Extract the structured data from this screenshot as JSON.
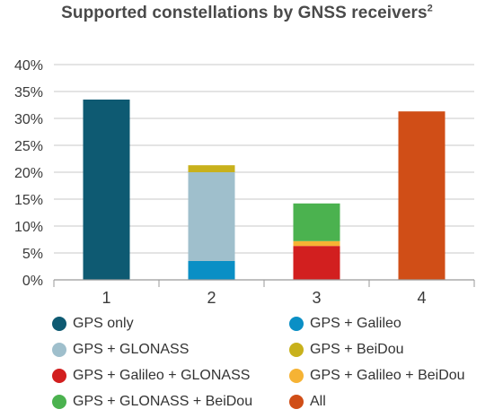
{
  "title": "Supported constellations by GNSS receivers",
  "title_footnote": "2",
  "chart_data": {
    "type": "bar",
    "stacked": true,
    "categories": [
      "1",
      "2",
      "3",
      "4"
    ],
    "ylim": [
      0,
      40
    ],
    "y_ticks": [
      "0%",
      "5%",
      "10%",
      "15%",
      "20%",
      "25%",
      "30%",
      "35%",
      "40%"
    ],
    "grid": true,
    "legend_position": "bottom",
    "series": [
      {
        "name": "GPS only",
        "color": "#0e5a72",
        "values": [
          33.5,
          0,
          0,
          0
        ]
      },
      {
        "name": "GPS + Galileo",
        "color": "#0a8fc5",
        "values": [
          0,
          3.5,
          0,
          0
        ]
      },
      {
        "name": "GPS + GLONASS",
        "color": "#9fbfcc",
        "values": [
          0,
          16.5,
          0,
          0
        ]
      },
      {
        "name": "GPS + BeiDou",
        "color": "#c8b11c",
        "values": [
          0,
          1.3,
          0,
          0
        ]
      },
      {
        "name": "GPS + Galileo + GLONASS",
        "color": "#d21f1f",
        "values": [
          0,
          0,
          6.3,
          0
        ]
      },
      {
        "name": "GPS + Galileo + BeiDou",
        "color": "#f6b334",
        "values": [
          0,
          0,
          0.9,
          0
        ]
      },
      {
        "name": "GPS + GLONASS + BeiDou",
        "color": "#4bb24f",
        "values": [
          0,
          0,
          7.0,
          0
        ]
      },
      {
        "name": "All",
        "color": "#d04e17",
        "values": [
          0,
          0,
          0,
          31.3
        ]
      }
    ]
  }
}
